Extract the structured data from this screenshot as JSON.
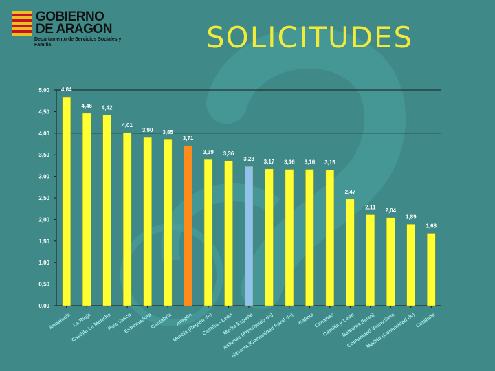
{
  "header": {
    "logo_line1": "GOBIERNO",
    "logo_line2": "DE ARAGON",
    "logo_sub": "Departamento de Servicios Sociales y Familia",
    "title": "SOLICITUDES"
  },
  "colors": {
    "background": "#3f8a88",
    "bar_default": "#ffff33",
    "bar_aragon": "#ff8c1a",
    "bar_spain": "#8fc2ee",
    "title": "#f2ea3a"
  },
  "chart_data": {
    "type": "bar",
    "title": "SOLICITUDES",
    "xlabel": "",
    "ylabel": "",
    "ylim": [
      0,
      5
    ],
    "y_ticks": [
      "0,00",
      "0,50",
      "1,00",
      "1,50",
      "2,00",
      "2,50",
      "3,00",
      "3,50",
      "4,00",
      "4,50",
      "5,00"
    ],
    "categories": [
      "Andalucía",
      "La Rioja",
      "Castilla La Mancha",
      "País Vasco",
      "Extremadura",
      "Cantabria",
      "Aragón",
      "Murcia (Región de)",
      "Castilla - León",
      "Media España",
      "Asturias (Principado de)",
      "Navarra (Comunidad Foral de)",
      "Galicia",
      "Canarias",
      "Castilla y León",
      "Baleares (Islas)",
      "Comunidad Valenciana",
      "Madrid (Comunidad de)",
      "Cataluña"
    ],
    "values": [
      4.84,
      4.46,
      4.42,
      4.01,
      3.9,
      3.85,
      3.71,
      3.39,
      3.36,
      3.23,
      3.17,
      3.16,
      3.16,
      3.15,
      2.47,
      2.11,
      2.04,
      1.89,
      1.68
    ],
    "value_labels": [
      "4,84",
      "4,46",
      "4,42",
      "4,01",
      "3,90",
      "3,85",
      "3,71",
      "3,39",
      "3,36",
      "3,23",
      "3,17",
      "3,16",
      "3,16",
      "3,15",
      "2,47",
      "2,11",
      "2,04",
      "1,89",
      "1,68"
    ],
    "highlight": {
      "Aragón": "bar_aragon",
      "Media España": "bar_spain"
    },
    "reference_lines": [
      5.0,
      4.0
    ],
    "legend": "none"
  }
}
